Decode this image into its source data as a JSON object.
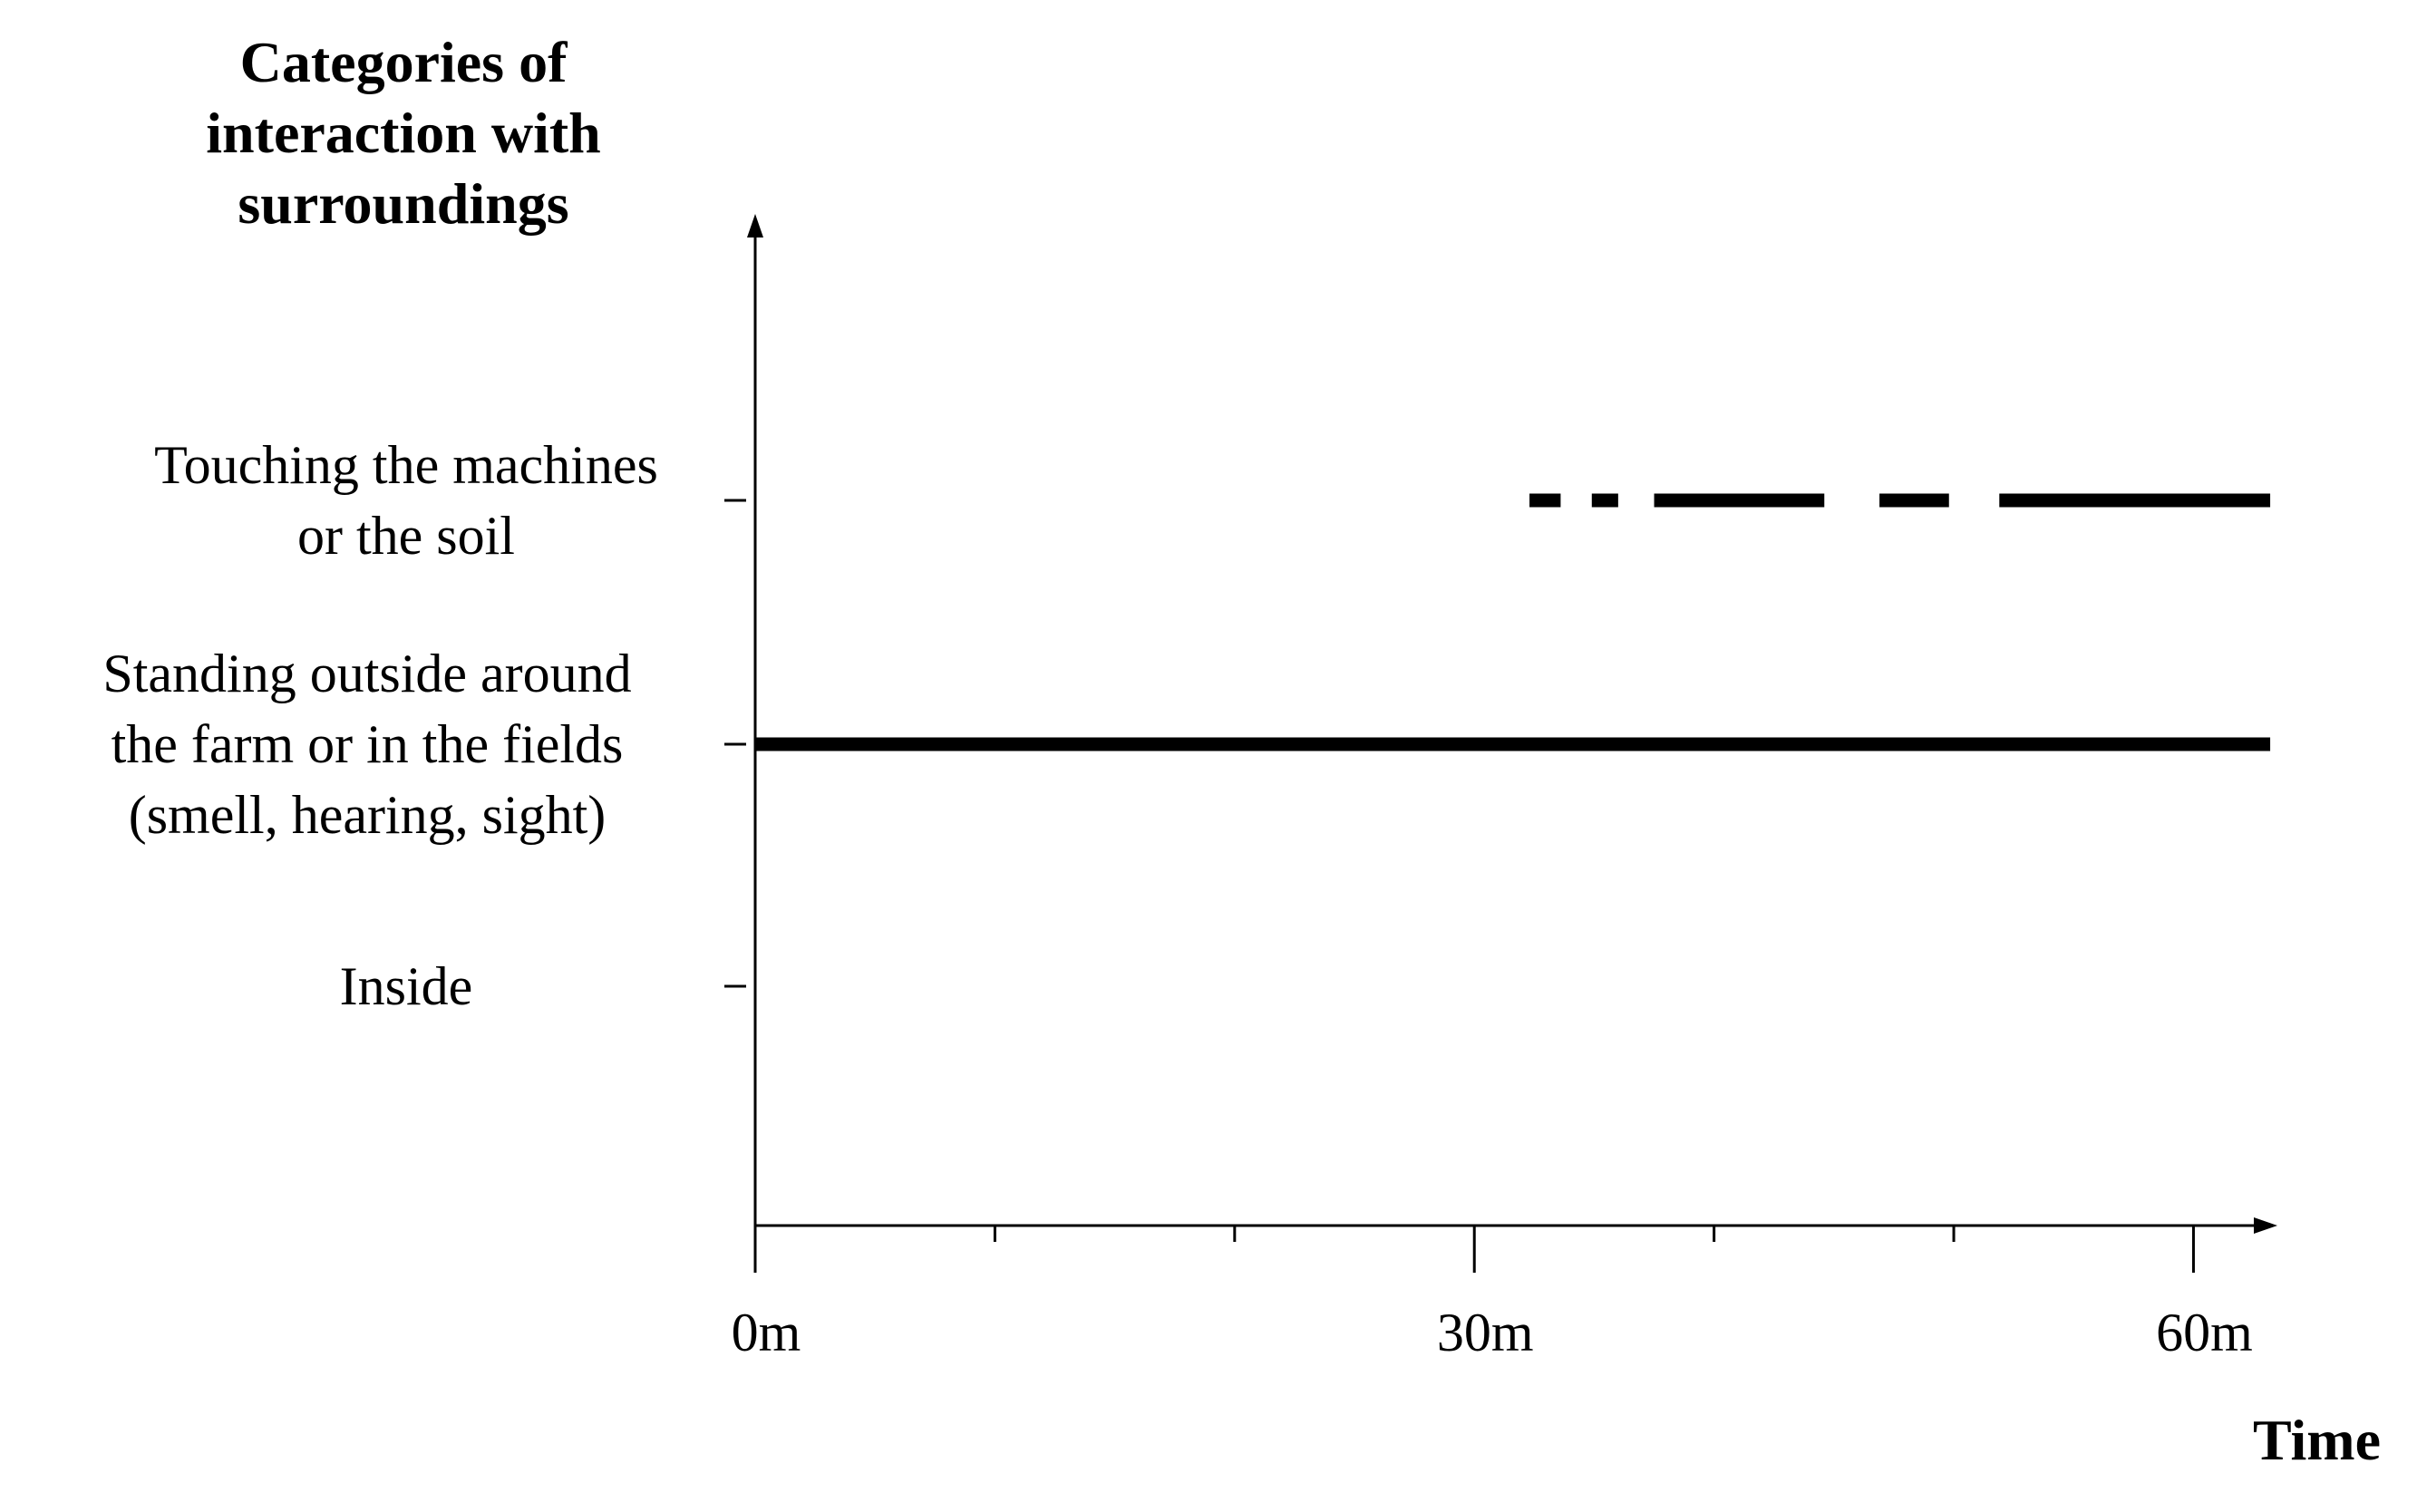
{
  "chart_data": {
    "type": "timeline",
    "title": "Categories of\ninteraction with\nsurroundings",
    "x_label": "Time",
    "categories": [
      "Touching the machines\nor the soil",
      "Standing outside around\nthe farm or in the fields\n(smell, hearing, sight)",
      "Inside"
    ],
    "segments": [
      [
        [
          32.3,
          33.6
        ],
        [
          34.9,
          36.0
        ],
        [
          37.5,
          44.6
        ],
        [
          46.9,
          49.8
        ],
        [
          51.9,
          63.2
        ]
      ],
      [
        [
          0,
          63.2
        ]
      ],
      []
    ],
    "color": "#000000",
    "xlim": [
      0,
      63.5
    ],
    "xticks": [
      {
        "value": 0,
        "label": "0m"
      },
      {
        "value": 30,
        "label": "30m"
      },
      {
        "value": 60,
        "label": "60m"
      }
    ],
    "x_minor_ticks": [
      10,
      20,
      40,
      50
    ]
  }
}
